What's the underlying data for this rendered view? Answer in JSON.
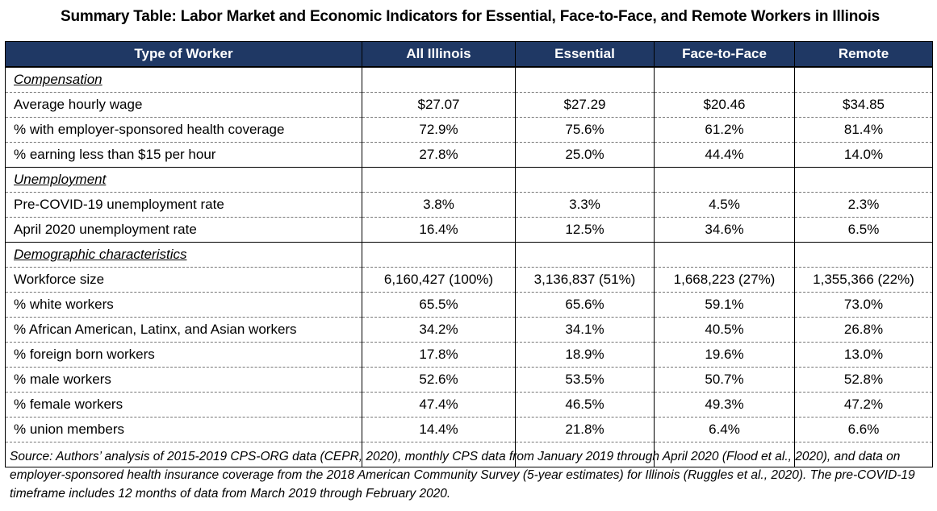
{
  "title": "Summary Table: Labor Market and Economic Indicators for Essential, Face-to-Face, and Remote Workers in Illinois",
  "table": {
    "headers": [
      "Type of Worker",
      "All Illinois",
      "Essential",
      "Face-to-Face",
      "Remote"
    ],
    "sections": [
      {
        "label": "Compensation",
        "rows": [
          {
            "label": "Average hourly wage",
            "values": [
              "$27.07",
              "$27.29",
              "$20.46",
              "$34.85"
            ]
          },
          {
            "label": "% with employer-sponsored health coverage",
            "values": [
              "72.9%",
              "75.6%",
              "61.2%",
              "81.4%"
            ]
          },
          {
            "label": "% earning less than $15 per hour",
            "values": [
              "27.8%",
              "25.0%",
              "44.4%",
              "14.0%"
            ]
          }
        ]
      },
      {
        "label": "Unemployment",
        "rows": [
          {
            "label": "Pre-COVID-19 unemployment rate",
            "values": [
              "3.8%",
              "3.3%",
              "4.5%",
              "2.3%"
            ]
          },
          {
            "label": "April 2020 unemployment rate",
            "values": [
              "16.4%",
              "12.5%",
              "34.6%",
              "6.5%"
            ]
          }
        ]
      },
      {
        "label": "Demographic characteristics",
        "rows": [
          {
            "label": "Workforce size",
            "values": [
              "6,160,427 (100%)",
              "3,136,837 (51%)",
              "1,668,223 (27%)",
              "1,355,366 (22%)"
            ]
          },
          {
            "label": "% white workers",
            "values": [
              "65.5%",
              "65.6%",
              "59.1%",
              "73.0%"
            ]
          },
          {
            "label": "% African American, Latinx, and Asian workers",
            "values": [
              "34.2%",
              "34.1%",
              "40.5%",
              "26.8%"
            ]
          },
          {
            "label": "% foreign born workers",
            "values": [
              "17.8%",
              "18.9%",
              "19.6%",
              "13.0%"
            ]
          },
          {
            "label": "% male workers",
            "values": [
              "52.6%",
              "53.5%",
              "50.7%",
              "52.8%"
            ]
          },
          {
            "label": "% female workers",
            "values": [
              "47.4%",
              "46.5%",
              "49.3%",
              "47.2%"
            ]
          },
          {
            "label": "% union members",
            "values": [
              "14.4%",
              "21.8%",
              "6.4%",
              "6.6%"
            ]
          }
        ]
      }
    ]
  },
  "source_note": "Source: Authors’ analysis of 2015-2019 CPS-ORG data (CEPR, 2020), monthly CPS data from January 2019 through April 2020 (Flood et al., 2020), and data on employer-sponsored health insurance coverage from the 2018 American Community Survey (5-year estimates) for Illinois (Ruggles et al., 2020). The pre-COVID-19 timeframe includes 12 months of data from March 2019 through February 2020.",
  "colors": {
    "header_background": "#1f3864",
    "header_text": "#ffffff"
  }
}
